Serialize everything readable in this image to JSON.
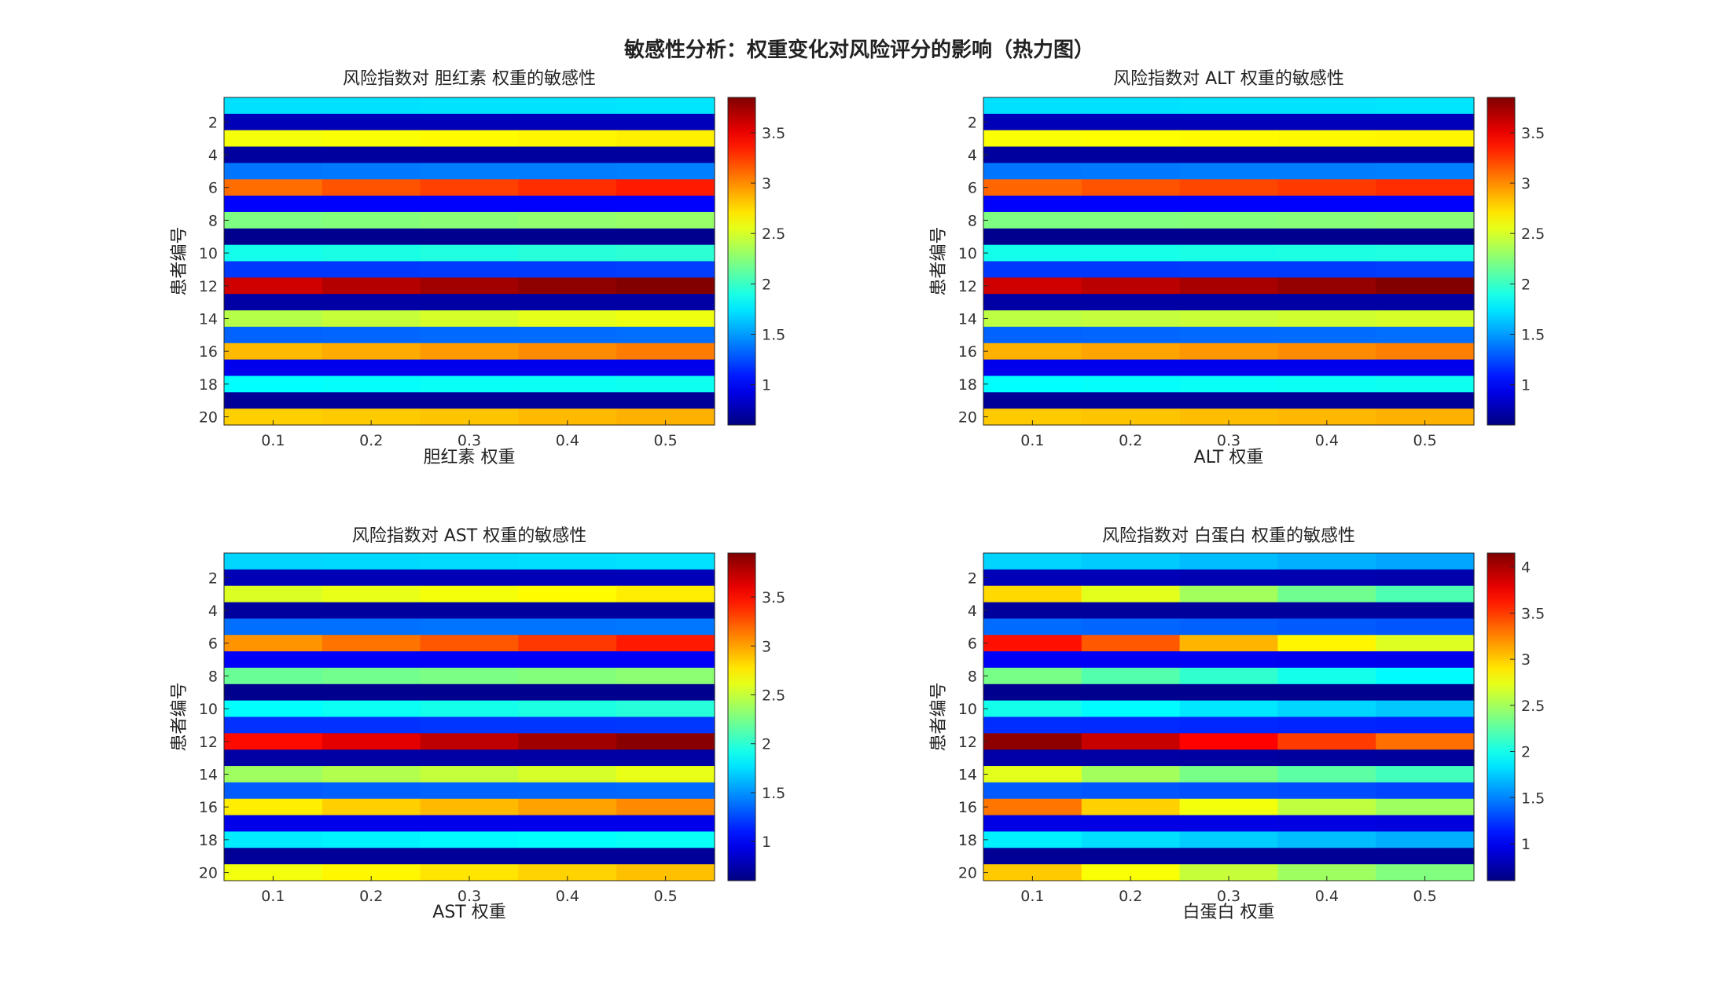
{
  "figure": {
    "suptitle": "敏感性分析：权重变化对风险评分的影响（热力图）"
  },
  "chart_data": [
    {
      "type": "heatmap",
      "title": "风险指数对 胆红素 权重的敏感性",
      "xlabel": "胆红素 权重",
      "ylabel": "患者编号",
      "x": [
        0.1,
        0.2,
        0.3,
        0.4,
        0.5
      ],
      "x_ticks": [
        "0.1",
        "0.2",
        "0.3",
        "0.4",
        "0.5"
      ],
      "y": [
        1,
        2,
        3,
        4,
        5,
        6,
        7,
        8,
        9,
        10,
        11,
        12,
        13,
        14,
        15,
        16,
        17,
        18,
        19,
        20
      ],
      "y_ticks": [
        "2",
        "4",
        "6",
        "8",
        "10",
        "12",
        "14",
        "16",
        "18",
        "20"
      ],
      "colormap": "jet",
      "clim": [
        0.6,
        3.85
      ],
      "colorbar_ticks": [
        "1",
        "1.5",
        "2",
        "2.5",
        "3",
        "3.5"
      ],
      "values": [
        [
          1.72,
          1.72,
          1.73,
          1.73,
          1.74
        ],
        [
          0.78,
          0.78,
          0.78,
          0.79,
          0.79
        ],
        [
          2.6,
          2.62,
          2.64,
          2.66,
          2.68
        ],
        [
          0.7,
          0.7,
          0.7,
          0.7,
          0.7
        ],
        [
          1.38,
          1.39,
          1.4,
          1.4,
          1.41
        ],
        [
          3.1,
          3.18,
          3.24,
          3.3,
          3.36
        ],
        [
          1.0,
          1.0,
          1.0,
          1.0,
          1.0
        ],
        [
          2.22,
          2.24,
          2.26,
          2.28,
          2.3
        ],
        [
          0.65,
          0.65,
          0.65,
          0.65,
          0.65
        ],
        [
          1.88,
          1.9,
          1.92,
          1.94,
          1.96
        ],
        [
          1.18,
          1.18,
          1.19,
          1.19,
          1.2
        ],
        [
          3.6,
          3.68,
          3.74,
          3.8,
          3.84
        ],
        [
          0.72,
          0.72,
          0.72,
          0.72,
          0.72
        ],
        [
          2.4,
          2.45,
          2.5,
          2.55,
          2.58
        ],
        [
          1.32,
          1.33,
          1.34,
          1.35,
          1.36
        ],
        [
          2.85,
          2.9,
          2.95,
          3.0,
          3.05
        ],
        [
          0.95,
          0.95,
          0.95,
          0.95,
          0.95
        ],
        [
          1.82,
          1.83,
          1.84,
          1.85,
          1.86
        ],
        [
          0.68,
          0.68,
          0.68,
          0.68,
          0.68
        ],
        [
          2.78,
          2.8,
          2.82,
          2.85,
          2.88
        ]
      ]
    },
    {
      "type": "heatmap",
      "title": "风险指数对 ALT 权重的敏感性",
      "xlabel": "ALT 权重",
      "ylabel": "患者编号",
      "x": [
        0.1,
        0.2,
        0.3,
        0.4,
        0.5
      ],
      "x_ticks": [
        "0.1",
        "0.2",
        "0.3",
        "0.4",
        "0.5"
      ],
      "y": [
        1,
        2,
        3,
        4,
        5,
        6,
        7,
        8,
        9,
        10,
        11,
        12,
        13,
        14,
        15,
        16,
        17,
        18,
        19,
        20
      ],
      "y_ticks": [
        "2",
        "4",
        "6",
        "8",
        "10",
        "12",
        "14",
        "16",
        "18",
        "20"
      ],
      "colormap": "jet",
      "clim": [
        0.6,
        3.85
      ],
      "colorbar_ticks": [
        "1",
        "1.5",
        "2",
        "2.5",
        "3",
        "3.5"
      ],
      "values": [
        [
          1.72,
          1.72,
          1.73,
          1.73,
          1.74
        ],
        [
          0.78,
          0.78,
          0.78,
          0.79,
          0.79
        ],
        [
          2.62,
          2.63,
          2.64,
          2.65,
          2.66
        ],
        [
          0.7,
          0.7,
          0.7,
          0.7,
          0.7
        ],
        [
          1.38,
          1.39,
          1.4,
          1.4,
          1.41
        ],
        [
          3.12,
          3.18,
          3.22,
          3.26,
          3.3
        ],
        [
          1.0,
          1.0,
          1.0,
          1.0,
          1.0
        ],
        [
          2.22,
          2.23,
          2.24,
          2.25,
          2.26
        ],
        [
          0.65,
          0.65,
          0.65,
          0.65,
          0.65
        ],
        [
          1.88,
          1.89,
          1.9,
          1.91,
          1.92
        ],
        [
          1.18,
          1.18,
          1.19,
          1.19,
          1.2
        ],
        [
          3.6,
          3.66,
          3.72,
          3.78,
          3.84
        ],
        [
          0.72,
          0.72,
          0.72,
          0.72,
          0.72
        ],
        [
          2.42,
          2.44,
          2.46,
          2.48,
          2.5
        ],
        [
          1.32,
          1.33,
          1.34,
          1.35,
          1.36
        ],
        [
          2.88,
          2.92,
          2.96,
          3.0,
          3.04
        ],
        [
          0.95,
          0.95,
          0.95,
          0.95,
          0.95
        ],
        [
          1.82,
          1.83,
          1.84,
          1.85,
          1.86
        ],
        [
          0.68,
          0.68,
          0.68,
          0.68,
          0.68
        ],
        [
          2.8,
          2.82,
          2.84,
          2.86,
          2.88
        ]
      ]
    },
    {
      "type": "heatmap",
      "title": "风险指数对 AST 权重的敏感性",
      "xlabel": "AST 权重",
      "ylabel": "患者编号",
      "x": [
        0.1,
        0.2,
        0.3,
        0.4,
        0.5
      ],
      "x_ticks": [
        "0.1",
        "0.2",
        "0.3",
        "0.4",
        "0.5"
      ],
      "y": [
        1,
        2,
        3,
        4,
        5,
        6,
        7,
        8,
        9,
        10,
        11,
        12,
        13,
        14,
        15,
        16,
        17,
        18,
        19,
        20
      ],
      "y_ticks": [
        "2",
        "4",
        "6",
        "8",
        "10",
        "12",
        "14",
        "16",
        "18",
        "20"
      ],
      "colormap": "jet",
      "clim": [
        0.6,
        3.95
      ],
      "colorbar_ticks": [
        "1",
        "1.5",
        "2",
        "2.5",
        "3",
        "3.5"
      ],
      "values": [
        [
          1.72,
          1.73,
          1.74,
          1.75,
          1.76
        ],
        [
          0.78,
          0.78,
          0.78,
          0.79,
          0.79
        ],
        [
          2.58,
          2.62,
          2.66,
          2.7,
          2.75
        ],
        [
          0.7,
          0.7,
          0.7,
          0.7,
          0.7
        ],
        [
          1.38,
          1.39,
          1.4,
          1.4,
          1.41
        ],
        [
          3.05,
          3.15,
          3.25,
          3.35,
          3.45
        ],
        [
          1.0,
          1.0,
          1.0,
          1.0,
          1.0
        ],
        [
          2.2,
          2.23,
          2.26,
          2.29,
          2.32
        ],
        [
          0.65,
          0.65,
          0.65,
          0.65,
          0.65
        ],
        [
          1.86,
          1.89,
          1.92,
          1.95,
          1.98
        ],
        [
          1.18,
          1.18,
          1.19,
          1.19,
          1.2
        ],
        [
          3.5,
          3.62,
          3.74,
          3.84,
          3.92
        ],
        [
          0.72,
          0.72,
          0.72,
          0.72,
          0.72
        ],
        [
          2.38,
          2.44,
          2.5,
          2.56,
          2.62
        ],
        [
          1.32,
          1.33,
          1.34,
          1.35,
          1.36
        ],
        [
          2.75,
          2.85,
          2.92,
          3.0,
          3.08
        ],
        [
          0.95,
          0.95,
          0.95,
          0.95,
          0.95
        ],
        [
          1.8,
          1.82,
          1.84,
          1.86,
          1.88
        ],
        [
          0.68,
          0.68,
          0.68,
          0.68,
          0.68
        ],
        [
          2.65,
          2.72,
          2.78,
          2.84,
          2.9
        ]
      ]
    },
    {
      "type": "heatmap",
      "title": "风险指数对 白蛋白 权重的敏感性",
      "xlabel": "白蛋白 权重",
      "ylabel": "患者编号",
      "x": [
        0.1,
        0.2,
        0.3,
        0.4,
        0.5
      ],
      "x_ticks": [
        "0.1",
        "0.2",
        "0.3",
        "0.4",
        "0.5"
      ],
      "y": [
        1,
        2,
        3,
        4,
        5,
        6,
        7,
        8,
        9,
        10,
        11,
        12,
        13,
        14,
        15,
        16,
        17,
        18,
        19,
        20
      ],
      "y_ticks": [
        "2",
        "4",
        "6",
        "8",
        "10",
        "12",
        "14",
        "16",
        "18",
        "20"
      ],
      "colormap": "jet",
      "clim": [
        0.6,
        4.15
      ],
      "colorbar_ticks": [
        "1",
        "1.5",
        "2",
        "2.5",
        "3",
        "3.5",
        "4"
      ],
      "values": [
        [
          1.78,
          1.75,
          1.7,
          1.66,
          1.62
        ],
        [
          0.8,
          0.79,
          0.78,
          0.77,
          0.76
        ],
        [
          2.95,
          2.72,
          2.5,
          2.32,
          2.2
        ],
        [
          0.7,
          0.7,
          0.7,
          0.7,
          0.7
        ],
        [
          1.42,
          1.4,
          1.38,
          1.36,
          1.34
        ],
        [
          3.65,
          3.4,
          3.08,
          2.85,
          2.7
        ],
        [
          1.02,
          1.01,
          1.0,
          0.99,
          0.98
        ],
        [
          2.35,
          2.22,
          2.1,
          2.0,
          1.92
        ],
        [
          0.65,
          0.65,
          0.65,
          0.65,
          0.65
        ],
        [
          2.0,
          1.92,
          1.85,
          1.79,
          1.74
        ],
        [
          1.2,
          1.19,
          1.18,
          1.17,
          1.16
        ],
        [
          4.1,
          3.9,
          3.7,
          3.5,
          3.32
        ],
        [
          0.74,
          0.73,
          0.72,
          0.71,
          0.7
        ],
        [
          2.72,
          2.5,
          2.35,
          2.25,
          2.16
        ],
        [
          1.36,
          1.34,
          1.32,
          1.3,
          1.28
        ],
        [
          3.3,
          2.98,
          2.78,
          2.6,
          2.48
        ],
        [
          0.96,
          0.95,
          0.95,
          0.94,
          0.93
        ],
        [
          1.88,
          1.82,
          1.76,
          1.7,
          1.65
        ],
        [
          0.68,
          0.68,
          0.68,
          0.68,
          0.68
        ],
        [
          3.0,
          2.8,
          2.62,
          2.48,
          2.38
        ]
      ]
    }
  ]
}
